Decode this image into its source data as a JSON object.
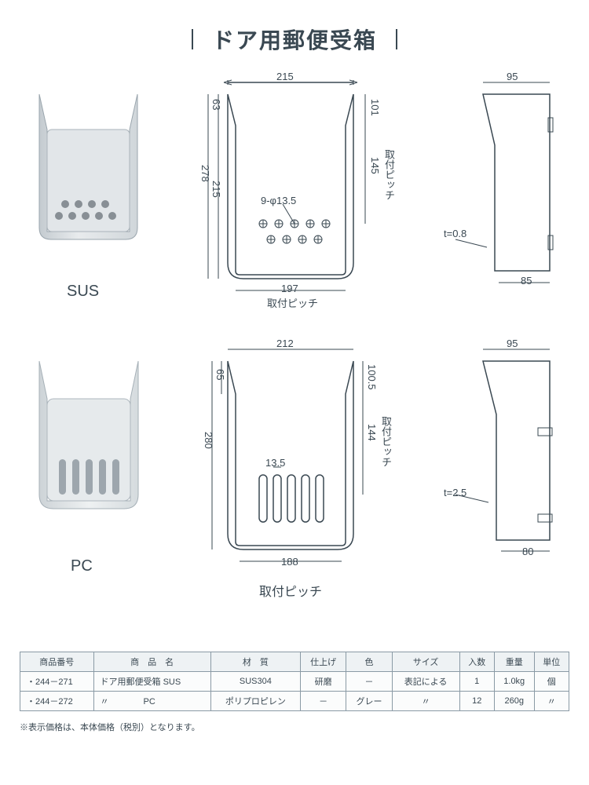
{
  "title": "ドア用郵便受箱",
  "models": {
    "sus": "SUS",
    "pc": "PC"
  },
  "sus_front": {
    "width_top": "215",
    "height_total": "278",
    "height_inner": "215",
    "height_top_gap": "63",
    "depth_right_top": "101",
    "pitch_v": "145",
    "pitch_v_label": "取付ピッチ",
    "pitch_h": "197",
    "pitch_h_label": "取付ピッチ",
    "hole_spec": "9-φ13.5"
  },
  "sus_side": {
    "width_top": "95",
    "width_bottom": "85",
    "thickness": "t=0.8"
  },
  "pc_front": {
    "width_top": "212",
    "height_total": "280",
    "height_top_gap": "65",
    "depth_right_top": "100.5",
    "pitch_v": "144",
    "pitch_v_label": "取付ピッチ",
    "pitch_h": "188",
    "pitch_h_label": "取付ピッチ",
    "slot_width": "13.5"
  },
  "pc_side": {
    "width_top": "95",
    "width_bottom": "80",
    "thickness": "t=2.5"
  },
  "table": {
    "headers": [
      "商品番号",
      "商　品　名",
      "材　質",
      "仕上げ",
      "色",
      "サイズ",
      "入数",
      "重量",
      "単位"
    ],
    "rows": [
      [
        "・244－271",
        "ドア用郵便受箱 SUS",
        "SUS304",
        "研磨",
        "－",
        "表記による",
        "1",
        "1.0kg",
        "個"
      ],
      [
        "・244－272",
        "〃　　　　PC",
        "ポリプロピレン",
        "－",
        "グレー",
        "〃",
        "12",
        "260g",
        "〃"
      ]
    ]
  },
  "footnote": "※表示価格は、本体価格（税別）となります。",
  "colors": {
    "line": "#3a4852",
    "photo_fill": "#d8dde0",
    "photo_shade": "#b5bdc2",
    "bg": "#ffffff"
  }
}
